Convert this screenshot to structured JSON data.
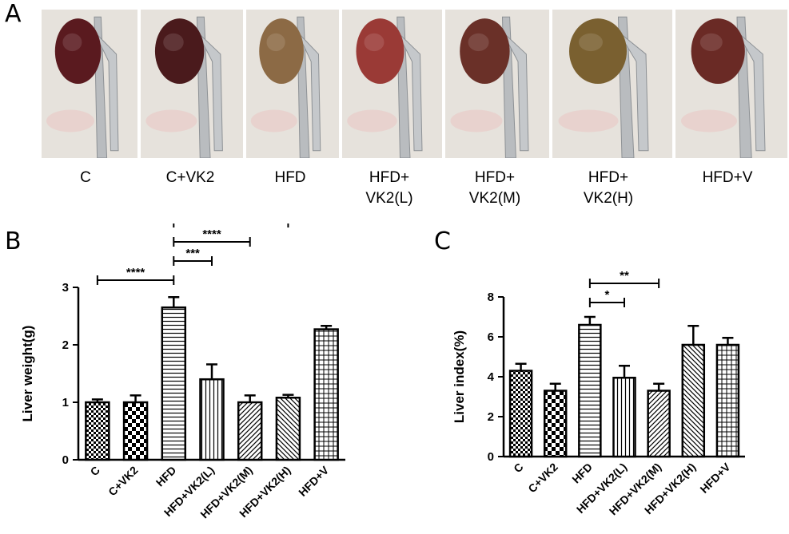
{
  "panel_a": {
    "letter": "A",
    "groups": [
      "C",
      "C+VK2",
      "HFD",
      "HFD+\nVK2(L)",
      "HFD+\nVK2(M)",
      "HFD+\nVK2(H)",
      "HFD+V"
    ],
    "liver_colors": [
      "#5a1a1f",
      "#4a1a1c",
      "#8c6a45",
      "#9a3a36",
      "#6a3028",
      "#7a6030",
      "#6a2a25"
    ]
  },
  "chart_data": [
    {
      "panel": "B",
      "type": "bar",
      "ylabel": "Liver weight(g)",
      "ylim": [
        0,
        3
      ],
      "yticks": [
        0,
        1,
        2,
        3
      ],
      "categories": [
        "C",
        "C+VK2",
        "HFD",
        "HFD+VK2(L)",
        "HFD+VK2(M)",
        "HFD+VK2(H)",
        "HFD+V"
      ],
      "values": [
        1.0,
        1.0,
        2.65,
        1.4,
        1.0,
        1.08,
        2.27
      ],
      "errors": [
        0.05,
        0.12,
        0.18,
        0.26,
        0.12,
        0.05,
        0.06
      ],
      "patterns": [
        "checker-small",
        "checker-large",
        "horizontal",
        "vertical",
        "diagonal-up",
        "diagonal-down",
        "grid"
      ],
      "significance": [
        {
          "from": 0,
          "to": 2,
          "label": "****"
        },
        {
          "from": 2,
          "to": 3,
          "label": "***"
        },
        {
          "from": 2,
          "to": 4,
          "label": "****"
        },
        {
          "from": 2,
          "to": 5,
          "label": "****"
        }
      ]
    },
    {
      "panel": "C",
      "type": "bar",
      "ylabel": "Liver index(%)",
      "ylim": [
        0,
        8
      ],
      "yticks": [
        0,
        2,
        4,
        6,
        8
      ],
      "categories": [
        "C",
        "C+VK2",
        "HFD",
        "HFD+VK2(L)",
        "HFD+VK2(M)",
        "HFD+VK2(H)",
        "HFD+V"
      ],
      "values": [
        4.3,
        3.3,
        6.6,
        3.95,
        3.3,
        5.6,
        5.6
      ],
      "errors": [
        0.35,
        0.35,
        0.4,
        0.6,
        0.35,
        0.95,
        0.35
      ],
      "patterns": [
        "checker-small",
        "checker-large",
        "horizontal",
        "vertical",
        "diagonal-up",
        "diagonal-down",
        "grid"
      ],
      "significance": [
        {
          "from": 2,
          "to": 3,
          "label": "*"
        },
        {
          "from": 2,
          "to": 4,
          "label": "**"
        }
      ]
    }
  ]
}
